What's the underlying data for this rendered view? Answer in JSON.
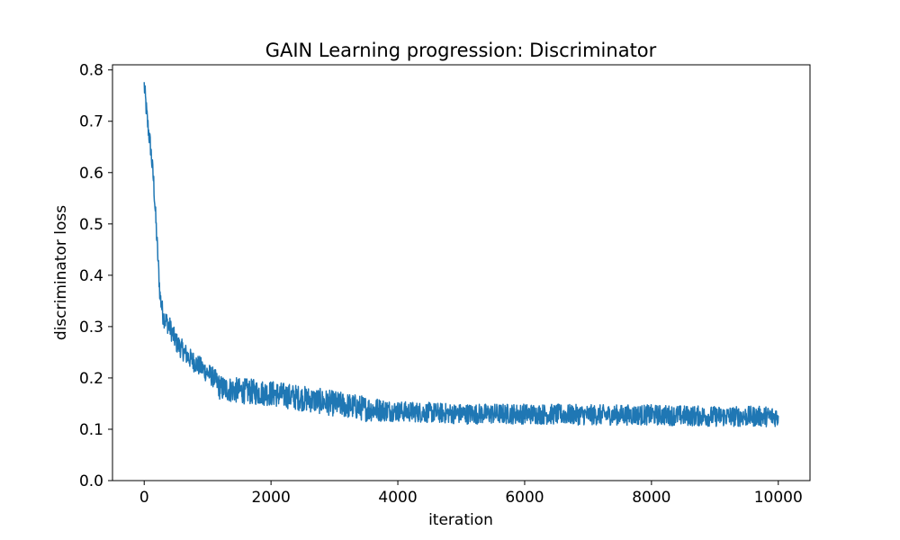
{
  "chart_data": {
    "type": "line",
    "title": "GAIN Learning progression: Discriminator",
    "xlabel": "iteration",
    "ylabel": "discriminator loss",
    "xlim": [
      -500,
      10500
    ],
    "ylim": [
      0.0,
      0.81
    ],
    "grid": false,
    "legend": "none",
    "x_ticks": [
      0,
      2000,
      4000,
      6000,
      8000,
      10000
    ],
    "x_tick_labels": [
      "0",
      "2000",
      "4000",
      "6000",
      "8000",
      "10000"
    ],
    "y_ticks": [
      0.0,
      0.1,
      0.2,
      0.3,
      0.4,
      0.5,
      0.6,
      0.7,
      0.8
    ],
    "y_tick_labels": [
      "0.0",
      "0.1",
      "0.2",
      "0.3",
      "0.4",
      "0.5",
      "0.6",
      "0.7",
      "0.8"
    ],
    "series": [
      {
        "color": "#1f77b4",
        "x": [
          0,
          50,
          100,
          150,
          200,
          250,
          300,
          400,
          500,
          700,
          900,
          1100,
          1200,
          1500,
          2000,
          2500,
          3000,
          3500,
          4000,
          5000,
          6000,
          7000,
          8000,
          9000,
          10000
        ],
        "y": [
          0.77,
          0.7,
          0.65,
          0.58,
          0.47,
          0.36,
          0.32,
          0.3,
          0.27,
          0.24,
          0.22,
          0.2,
          0.18,
          0.175,
          0.17,
          0.16,
          0.15,
          0.14,
          0.135,
          0.13,
          0.13,
          0.128,
          0.128,
          0.125,
          0.125
        ],
        "noise_band": [
          0.02,
          0.02,
          0.02,
          0.02,
          0.02,
          0.02,
          0.02,
          0.02,
          0.02,
          0.02,
          0.02,
          0.02,
          0.025,
          0.025,
          0.025,
          0.025,
          0.025,
          0.025,
          0.02,
          0.02,
          0.02,
          0.02,
          0.02,
          0.02,
          0.02
        ]
      }
    ]
  }
}
